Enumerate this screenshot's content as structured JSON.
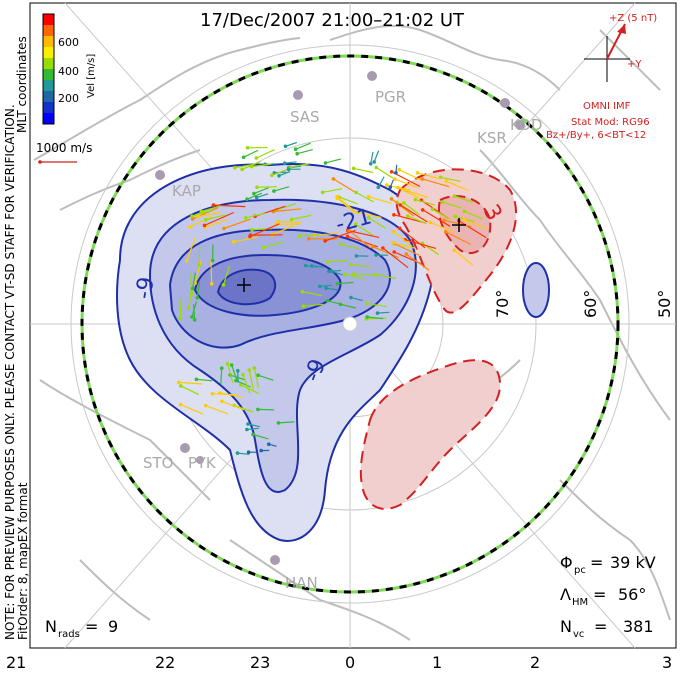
{
  "title": "17/Dec/2007 21:00–21:02 UT",
  "colorbar": {
    "label": "Vel [m/s]",
    "ticks": [
      "600",
      "400",
      "200"
    ],
    "colors": [
      "#ff0000",
      "#ff6600",
      "#ffbb00",
      "#ffee00",
      "#99dd00",
      "#33bb33",
      "#229999",
      "#2266aa",
      "#1133cc",
      "#0000ff"
    ]
  },
  "coords_label": "MLT coordinates",
  "scale_vector_label": "1000 m/s",
  "imf": {
    "z_label": "+Z (5 nT)",
    "y_label": "+Y",
    "source": "OMNI IMF",
    "model": "Stat Mod: RG96",
    "condition": "Bz+/By+, 6<BT<12"
  },
  "side_note": "NOTE: FOR PREVIEW PURPOSES ONLY. PLEASE CONTACT VT-SD STAFF FOR VERIFICATION.",
  "fit_order": "FitOrder: 8, mapEX format",
  "stations": [
    "SAS",
    "PGR",
    "KSR",
    "KOD",
    "KAP",
    "STO",
    "PYK",
    "HAN"
  ],
  "lat_labels": [
    "70°",
    "60°",
    "50°"
  ],
  "contour_labels": [
    "-9",
    "-9",
    "3",
    "-21"
  ],
  "mlt_labels": [
    "21",
    "22",
    "23",
    "0",
    "1",
    "2",
    "3"
  ],
  "stats": {
    "phi_pc": "39 kV",
    "lambda_hm": "56°",
    "n_vc": "381",
    "n_rads": "9"
  },
  "colors": {
    "negative_fill": "#b9bfe4",
    "negative_line": "#1f2fa8",
    "positive_fill": "#f2cfcf",
    "positive_line": "#d42020",
    "coast": "#bdbdbd",
    "boundary_dash": "#7ed957"
  }
}
